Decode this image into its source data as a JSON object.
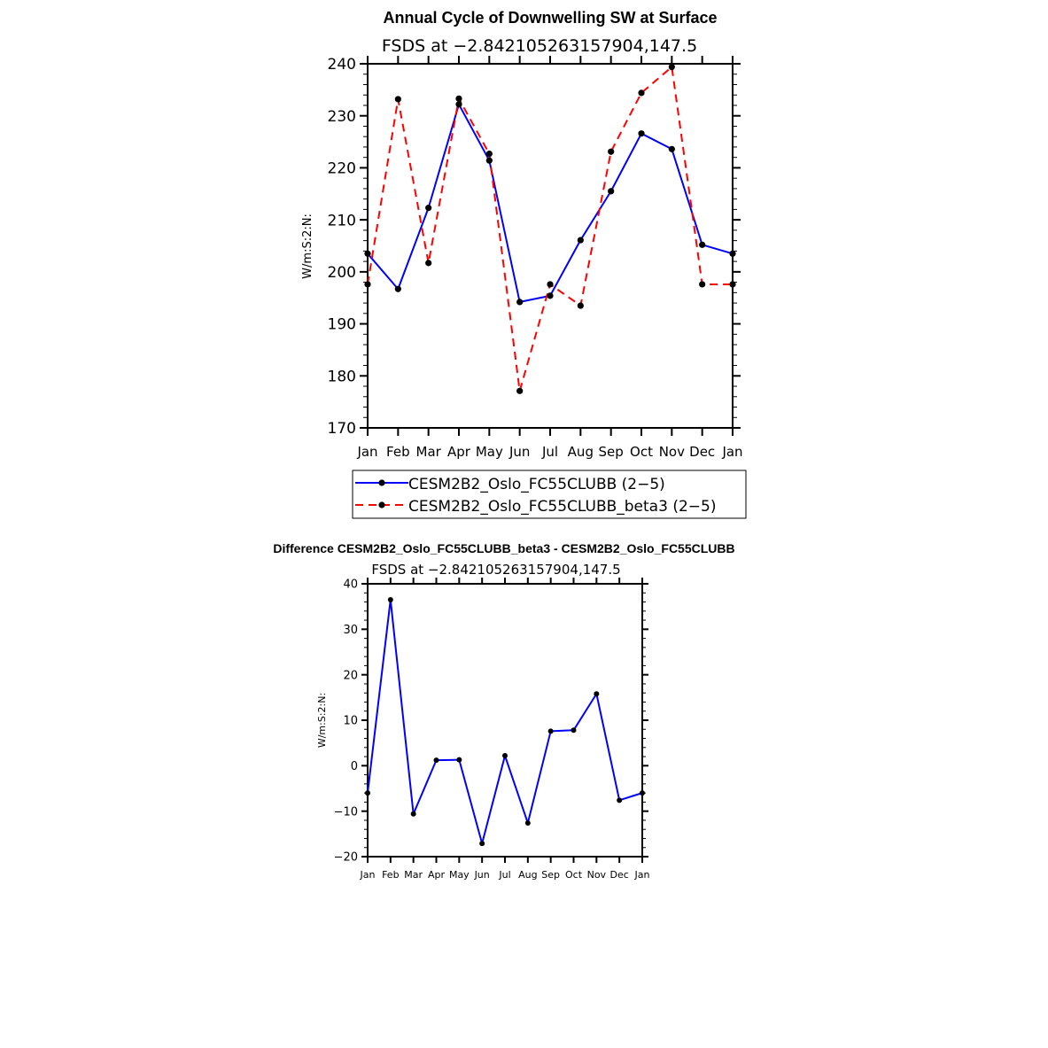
{
  "chart_data": [
    {
      "type": "line",
      "title": "Annual Cycle of Downwelling SW at Surface",
      "subtitle": "FSDS at −2.842105263157904,147.5",
      "xlabel": "",
      "ylabel": "W/m:S:2:N:",
      "categories": [
        "Jan",
        "Feb",
        "Mar",
        "Apr",
        "May",
        "Jun",
        "Jul",
        "Aug",
        "Sep",
        "Oct",
        "Nov",
        "Dec",
        "Jan"
      ],
      "ylim": [
        170,
        240
      ],
      "yticks": [
        170,
        180,
        190,
        200,
        210,
        220,
        230,
        240
      ],
      "ytick_labels": [
        "170",
        "180",
        "190",
        "200",
        "210",
        "220",
        "230",
        "240"
      ],
      "grid": false,
      "legend_position": "bottom",
      "series": [
        {
          "name": "CESM2B2_Oslo_FC55CLUBB (2−5)",
          "color": "#0000ff",
          "style": "solid",
          "values": [
            203.5,
            196.7,
            212.3,
            232.2,
            221.4,
            194.2,
            195.4,
            206.1,
            215.5,
            226.6,
            223.6,
            205.2,
            203.5
          ]
        },
        {
          "name": "CESM2B2_Oslo_FC55CLUBB_beta3 (2−5)",
          "color": "#ff0000",
          "style": "dashed",
          "values": [
            197.6,
            233.2,
            201.7,
            233.3,
            222.7,
            177.1,
            197.6,
            193.5,
            223.1,
            234.4,
            239.4,
            197.6,
            197.6
          ]
        }
      ]
    },
    {
      "type": "line",
      "title": "Difference CESM2B2_Oslo_FC55CLUBB_beta3 - CESM2B2_Oslo_FC55CLUBB",
      "subtitle": "FSDS at −2.842105263157904,147.5",
      "xlabel": "",
      "ylabel": "W/m:S:2:N:",
      "categories": [
        "Jan",
        "Feb",
        "Mar",
        "Apr",
        "May",
        "Jun",
        "Jul",
        "Aug",
        "Sep",
        "Oct",
        "Nov",
        "Dec",
        "Jan"
      ],
      "ylim": [
        -20,
        40
      ],
      "yticks": [
        -20,
        -10,
        0,
        10,
        20,
        30,
        40
      ],
      "ytick_labels": [
        "−20",
        "−10",
        "0",
        "10",
        "20",
        "30",
        "40"
      ],
      "grid": false,
      "series": [
        {
          "name": "Difference",
          "color": "#0000ff",
          "style": "solid",
          "values": [
            -6.0,
            36.5,
            -10.6,
            1.2,
            1.3,
            -17.1,
            2.2,
            -12.6,
            7.6,
            7.8,
            15.8,
            -7.6,
            -6.0
          ]
        }
      ]
    }
  ]
}
